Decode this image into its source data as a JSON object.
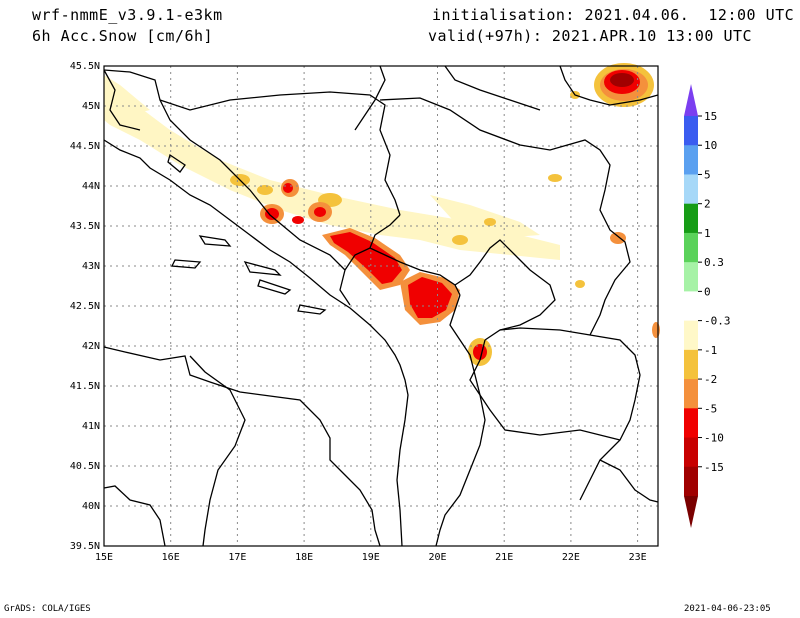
{
  "header": {
    "model": "wrf-nmmE_v3.9.1-e3km",
    "field": "6h Acc.Snow [cm/6h]",
    "init": "initialisation: 2021.04.06.  12:00 UTC",
    "valid": "valid(+97h): 2021.APR.10 13:00 UTC"
  },
  "axes": {
    "lat_ticks": [
      "39.5N",
      "40N",
      "40.5N",
      "41N",
      "41.5N",
      "42N",
      "42.5N",
      "43N",
      "43.5N",
      "44N",
      "44.5N",
      "45N",
      "45.5N"
    ],
    "lon_ticks": [
      "15E",
      "16E",
      "17E",
      "18E",
      "19E",
      "20E",
      "21E",
      "22E",
      "23E"
    ]
  },
  "colorbar": {
    "labels": [
      "15",
      "10",
      "5",
      "2",
      "1",
      "0.3",
      "0",
      "-0.3",
      "-1",
      "-2",
      "-5",
      "-10",
      "-15"
    ],
    "colors": [
      "#7b3ff0",
      "#3a5cf0",
      "#5aa0f0",
      "#a6d8f8",
      "#169c16",
      "#5ad25a",
      "#a6f2a6",
      "#ffffff",
      "#fff8c8",
      "#f4c23c",
      "#f4903c",
      "#f00000",
      "#c80000",
      "#a00000",
      "#7a0000"
    ]
  },
  "footer": {
    "left": "GrADS: COLA/IGES",
    "right": "2021-04-06-23:05"
  }
}
